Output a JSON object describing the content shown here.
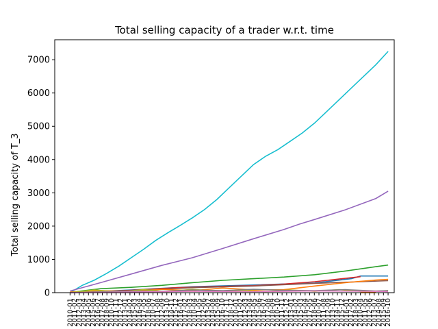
{
  "chart_data": {
    "type": "line",
    "title": "Total selling capacity of a trader w.r.t. time",
    "xlabel": "",
    "ylabel": "Total selling capacity of T_3",
    "xlim": [
      -5,
      106
    ],
    "ylim": [
      0,
      7600
    ],
    "yticks": [
      0,
      1000,
      2000,
      3000,
      4000,
      5000,
      6000,
      7000
    ],
    "n_points": 70,
    "x_tick_labels_legible": false,
    "series": [
      {
        "name": "cyan",
        "color": "#17becf",
        "x": [
          0,
          4,
          8,
          12,
          16,
          20,
          24,
          28,
          32,
          36,
          40,
          44,
          48,
          52,
          56,
          60,
          64,
          68,
          72,
          76,
          80,
          84,
          88,
          92,
          96,
          100,
          104
        ],
        "values": [
          0,
          220,
          380,
          580,
          800,
          1050,
          1300,
          1570,
          1800,
          2020,
          2250,
          2500,
          2800,
          3150,
          3500,
          3850,
          4100,
          4300,
          4550,
          4800,
          5100,
          5450,
          5800,
          6150,
          6500,
          6850,
          7250
        ]
      },
      {
        "name": "purple",
        "color": "#9467bd",
        "x": [
          0,
          10,
          20,
          30,
          40,
          50,
          60,
          70,
          75,
          80,
          90,
          100,
          104
        ],
        "values": [
          50,
          300,
          560,
          820,
          1050,
          1330,
          1620,
          1900,
          2060,
          2200,
          2490,
          2830,
          3050
        ]
      },
      {
        "name": "green",
        "color": "#2ca02c",
        "x": [
          0,
          10,
          20,
          30,
          40,
          50,
          60,
          70,
          80,
          90,
          100,
          104
        ],
        "values": [
          10,
          120,
          160,
          220,
          300,
          370,
          420,
          470,
          540,
          650,
          780,
          830
        ]
      },
      {
        "name": "blue",
        "color": "#1f77b4",
        "x": [
          0,
          20,
          40,
          60,
          80,
          92,
          95,
          100,
          104
        ],
        "values": [
          0,
          80,
          180,
          230,
          290,
          420,
          500,
          500,
          500
        ]
      },
      {
        "name": "red",
        "color": "#d62728",
        "x": [
          0,
          20,
          35,
          50,
          60,
          70,
          80,
          90,
          95
        ],
        "values": [
          0,
          70,
          150,
          190,
          210,
          260,
          330,
          430,
          480
        ]
      },
      {
        "name": "brown",
        "color": "#8c564b",
        "x": [
          0,
          20,
          40,
          60,
          80,
          104
        ],
        "values": [
          0,
          60,
          150,
          200,
          280,
          360
        ]
      },
      {
        "name": "orange",
        "color": "#ff7f0e",
        "x": [
          0,
          10,
          20,
          30,
          40,
          50,
          60,
          70,
          80,
          90,
          100,
          104
        ],
        "values": [
          20,
          60,
          40,
          100,
          60,
          140,
          80,
          90,
          200,
          300,
          380,
          400
        ]
      },
      {
        "name": "olive",
        "color": "#bcbd22",
        "x": [
          0,
          8,
          16,
          24,
          32,
          40,
          48,
          56,
          64,
          72,
          80,
          88,
          96,
          104
        ],
        "values": [
          0,
          80,
          20,
          90,
          30,
          100,
          40,
          70,
          30,
          80,
          40,
          90,
          30,
          60
        ]
      },
      {
        "name": "gray",
        "color": "#7f7f7f",
        "x": [
          0,
          10,
          20,
          30,
          40,
          50,
          60,
          70,
          80,
          90,
          100,
          104
        ],
        "values": [
          0,
          30,
          50,
          40,
          80,
          60,
          100,
          70,
          60,
          90,
          50,
          60
        ]
      },
      {
        "name": "pink",
        "color": "#e377c2",
        "x": [
          0,
          20,
          40,
          60,
          80,
          100,
          104
        ],
        "values": [
          0,
          20,
          40,
          30,
          50,
          40,
          30
        ]
      },
      {
        "name": "orange-tail",
        "color": "#ff7f0e",
        "x": [
          95,
          100
        ],
        "values": [
          5,
          5
        ]
      }
    ]
  }
}
